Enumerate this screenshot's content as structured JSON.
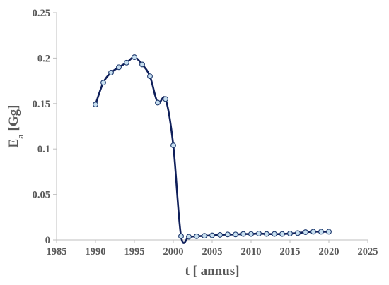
{
  "chart_data": {
    "type": "scatter",
    "xlabel": "t [ annus]",
    "ylabel": {
      "main": "E",
      "sub": "a",
      "unit": " [Gg]"
    },
    "xlim": [
      1985,
      2025
    ],
    "ylim": [
      0,
      0.25
    ],
    "xticks": [
      1985,
      1990,
      1995,
      2000,
      2005,
      2010,
      2015,
      2020,
      2025
    ],
    "yticks": [
      0,
      0.05,
      0.1,
      0.15,
      0.2,
      0.25
    ],
    "xtick_labels": [
      "1985",
      "1990",
      "1995",
      "2000",
      "2005",
      "2010",
      "2015",
      "2020",
      "2025"
    ],
    "ytick_labels": [
      "0",
      "0.05",
      "0.1",
      "0.15",
      "0.2",
      "0.25"
    ],
    "grid": false,
    "legend": "none",
    "line_style": "smooth",
    "series": [
      {
        "x": [
          1990,
          1991,
          1992,
          1993,
          1994,
          1995,
          1996,
          1997,
          1998,
          1999,
          2000,
          2001,
          2002,
          2003,
          2004,
          2005,
          2006,
          2007,
          2008,
          2009,
          2010,
          2011,
          2012,
          2013,
          2014,
          2015,
          2016,
          2017,
          2018,
          2019,
          2020
        ],
        "values": [
          0.149,
          0.173,
          0.184,
          0.19,
          0.195,
          0.201,
          0.193,
          0.18,
          0.151,
          0.155,
          0.104,
          0.004,
          0.0035,
          0.004,
          0.0045,
          0.005,
          0.0055,
          0.006,
          0.006,
          0.0065,
          0.0065,
          0.007,
          0.0065,
          0.0065,
          0.0065,
          0.007,
          0.0075,
          0.0085,
          0.009,
          0.009,
          0.009
        ],
        "line_color": "#0f1f5a",
        "marker_fill": "#c7dff0",
        "marker_stroke": "#1f3a6e"
      }
    ]
  }
}
